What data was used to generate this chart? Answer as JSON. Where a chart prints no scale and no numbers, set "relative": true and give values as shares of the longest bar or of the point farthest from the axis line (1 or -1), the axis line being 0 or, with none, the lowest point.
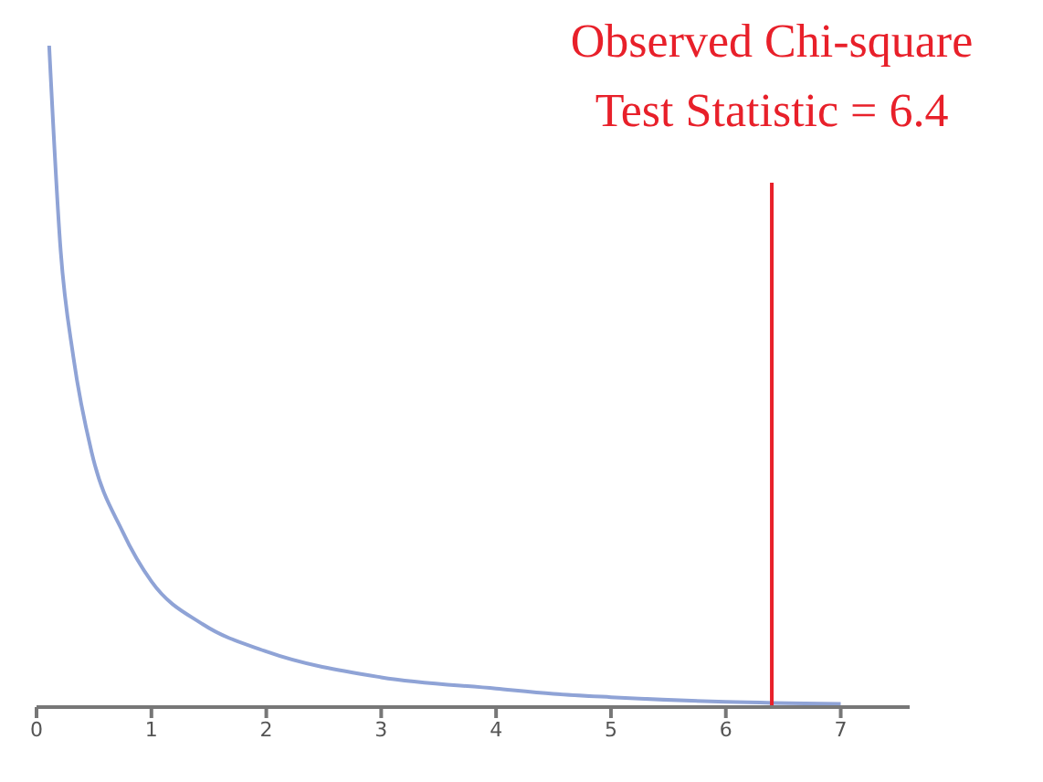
{
  "chart_data": {
    "type": "line",
    "relative": true,
    "x": [
      0.11,
      0.21,
      0.32,
      0.48,
      0.75,
      1.0,
      1.45,
      2.0,
      3.0,
      4.0,
      4.5,
      5.0,
      6.0,
      7.0
    ],
    "series": [
      {
        "color": "#8fa3d6",
        "values": [
          1.0,
          0.69,
          0.53,
          0.385,
          0.265,
          0.19,
          0.125,
          0.084,
          0.045,
          0.028,
          0.02,
          0.015,
          0.008,
          0.005
        ]
      }
    ],
    "xlim": [
      0,
      7.6
    ],
    "xticks": [
      0,
      1,
      2,
      3,
      4,
      5,
      6,
      7
    ],
    "ref_lines": [
      {
        "axis": "x",
        "value": 6.4,
        "label": "Observed Chi-square\nTest Statistic = 6.4",
        "color": "#e8202a"
      }
    ],
    "grid": false,
    "legend": false,
    "marker": "none",
    "line_style": "solid"
  }
}
